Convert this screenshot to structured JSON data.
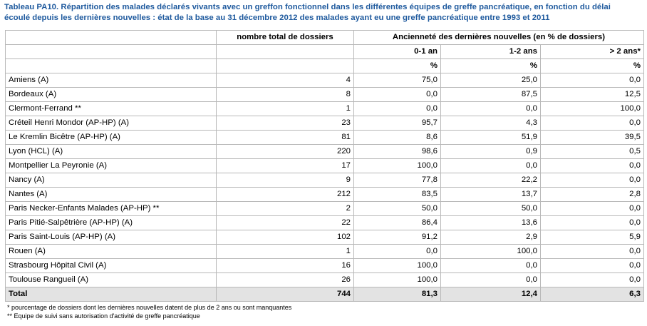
{
  "title_line1": "Tableau PA10. Répartition des malades déclarés vivants avec un greffon fonctionnel dans les différentes équipes de greffe pancréatique, en fonction du délai",
  "title_line2": "écoulé depuis les dernières nouvelles : état de la base au 31 décembre 2012 des malades ayant eu une greffe pancréatique entre 1993 et 2011",
  "header": {
    "total_label": "nombre total de dossiers",
    "group_label": "Ancienneté des dernières nouvelles (en % de dossiers)",
    "col_a": "0-1 an",
    "col_b": "1-2 ans",
    "col_c": "> 2 ans*",
    "unit": "%"
  },
  "rows": [
    {
      "name": "Amiens (A)",
      "total": "4",
      "a": "75,0",
      "b": "25,0",
      "c": "0,0"
    },
    {
      "name": "Bordeaux (A)",
      "total": "8",
      "a": "0,0",
      "b": "87,5",
      "c": "12,5"
    },
    {
      "name": "Clermont-Ferrand **",
      "total": "1",
      "a": "0,0",
      "b": "0,0",
      "c": "100,0"
    },
    {
      "name": "Créteil Henri Mondor (AP-HP) (A)",
      "total": "23",
      "a": "95,7",
      "b": "4,3",
      "c": "0,0"
    },
    {
      "name": "Le Kremlin Bicêtre (AP-HP) (A)",
      "total": "81",
      "a": "8,6",
      "b": "51,9",
      "c": "39,5"
    },
    {
      "name": "Lyon (HCL) (A)",
      "total": "220",
      "a": "98,6",
      "b": "0,9",
      "c": "0,5"
    },
    {
      "name": "Montpellier La Peyronie (A)",
      "total": "17",
      "a": "100,0",
      "b": "0,0",
      "c": "0,0"
    },
    {
      "name": "Nancy (A)",
      "total": "9",
      "a": "77,8",
      "b": "22,2",
      "c": "0,0"
    },
    {
      "name": "Nantes (A)",
      "total": "212",
      "a": "83,5",
      "b": "13,7",
      "c": "2,8"
    },
    {
      "name": "Paris Necker-Enfants Malades (AP-HP) **",
      "total": "2",
      "a": "50,0",
      "b": "50,0",
      "c": "0,0"
    },
    {
      "name": "Paris Pitié-Salpêtrière  (AP-HP) (A)",
      "total": "22",
      "a": "86,4",
      "b": "13,6",
      "c": "0,0"
    },
    {
      "name": "Paris Saint-Louis (AP-HP) (A)",
      "total": "102",
      "a": "91,2",
      "b": "2,9",
      "c": "5,9"
    },
    {
      "name": "Rouen (A)",
      "total": "1",
      "a": "0,0",
      "b": "100,0",
      "c": "0,0"
    },
    {
      "name": "Strasbourg Hôpital Civil (A)",
      "total": "16",
      "a": "100,0",
      "b": "0,0",
      "c": "0,0"
    },
    {
      "name": "Toulouse Rangueil (A)",
      "total": "26",
      "a": "100,0",
      "b": "0,0",
      "c": "0,0"
    }
  ],
  "total_row": {
    "name": "Total",
    "total": "744",
    "a": "81,3",
    "b": "12,4",
    "c": "6,3"
  },
  "footnotes": [
    "* pourcentage de dossiers dont les dernières nouvelles datent de plus de 2 ans ou sont manquantes",
    "** Equipe de suivi sans autorisation d'activité de greffe pancréatique"
  ]
}
